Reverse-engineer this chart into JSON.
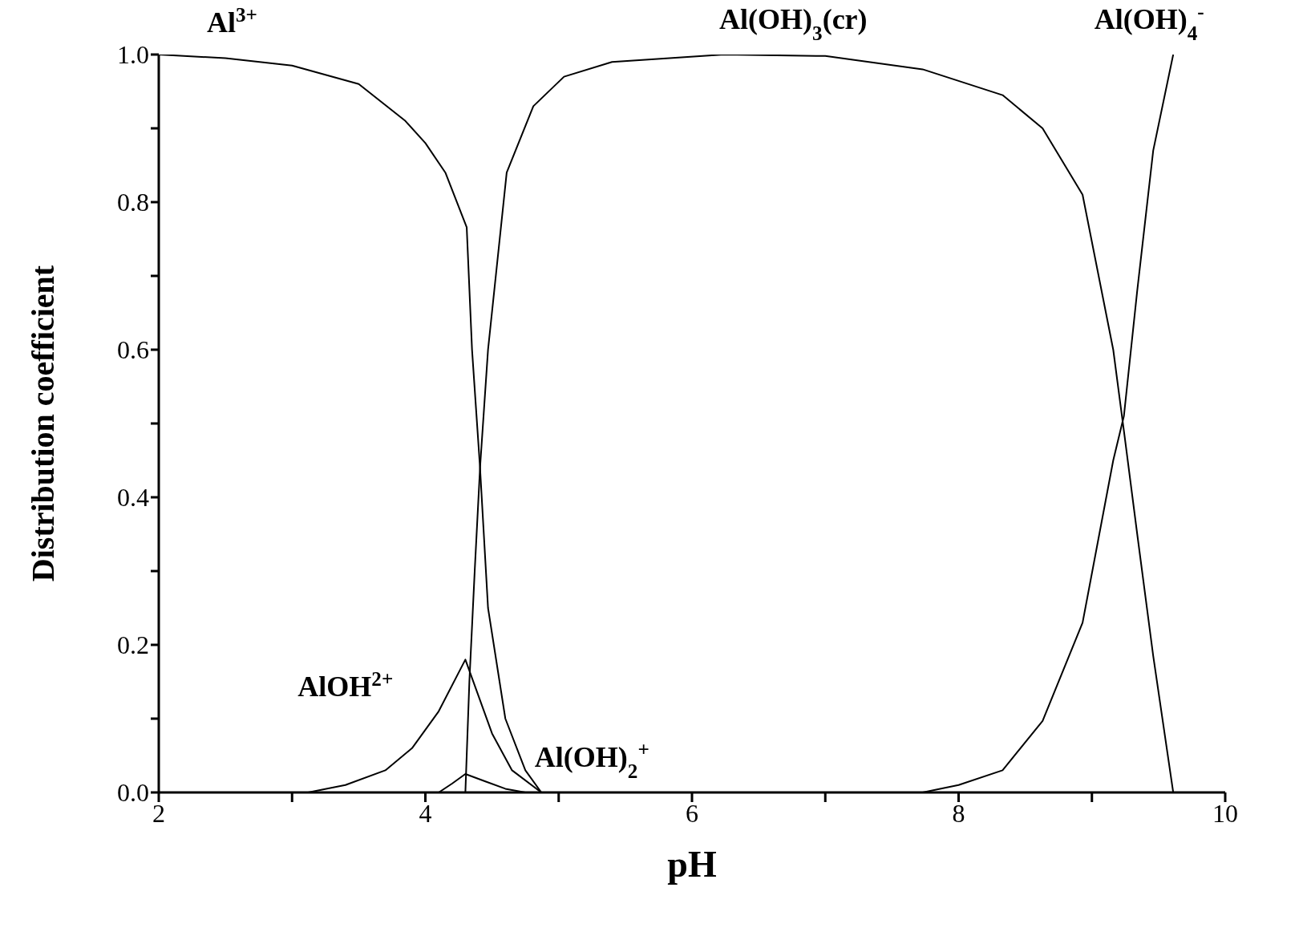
{
  "chart_data": {
    "type": "line",
    "xlabel": "pH",
    "ylabel": "Distribution coefficient",
    "xlim": [
      2,
      10
    ],
    "ylim": [
      0,
      1.0
    ],
    "xticks": [
      2,
      {
        "value": 3,
        "label": null
      },
      4,
      {
        "value": 5,
        "label": null
      },
      6,
      {
        "value": 7,
        "label": null
      },
      8,
      {
        "value": 9,
        "label": null
      },
      10
    ],
    "yticks": [
      {
        "value": 0,
        "label": "0.0"
      },
      {
        "value": 0.1,
        "label": null
      },
      {
        "value": 0.2,
        "label": "0.2"
      },
      {
        "value": 0.3,
        "label": null
      },
      {
        "value": 0.4,
        "label": "0.4"
      },
      {
        "value": 0.5,
        "label": null
      },
      {
        "value": 0.6,
        "label": "0.6"
      },
      {
        "value": 0.7,
        "label": null
      },
      {
        "value": 0.8,
        "label": "0.8"
      },
      {
        "value": 0.9,
        "label": null
      },
      {
        "value": 1.0,
        "label": "1.0"
      }
    ],
    "grid": false,
    "marker": "none",
    "line_style": "solid",
    "series": [
      {
        "color": "#000000",
        "x": [
          2,
          2.5,
          3,
          3.5,
          3.85,
          4.0,
          4.15,
          4.31,
          4.35,
          4.41,
          4.47,
          4.6,
          4.75,
          4.87
        ],
        "values": [
          1.0,
          0.995,
          0.985,
          0.96,
          0.91,
          0.88,
          0.84,
          0.766,
          0.6,
          0.44,
          0.25,
          0.1,
          0.03,
          0
        ]
      },
      {
        "color": "#000000",
        "x": [
          3.12,
          3.4,
          3.7,
          3.9,
          4.1,
          4.3,
          4.4,
          4.5,
          4.65,
          4.87
        ],
        "values": [
          0,
          0.01,
          0.03,
          0.06,
          0.11,
          0.18,
          0.13,
          0.08,
          0.03,
          0
        ]
      },
      {
        "color": "#000000",
        "x": [
          4.1,
          4.2,
          4.3,
          4.45,
          4.6,
          4.75
        ],
        "values": [
          0,
          0.012,
          0.025,
          0.015,
          0.005,
          0
        ]
      },
      {
        "color": "#000000",
        "x": [
          4.3,
          4.33,
          4.37,
          4.41,
          4.47,
          4.61,
          4.81,
          5.04,
          5.4,
          6.24,
          7.0,
          7.73,
          8.33,
          8.63,
          8.93,
          9.16,
          9.24,
          9.34,
          9.46,
          9.61
        ],
        "values": [
          0,
          0.15,
          0.3,
          0.44,
          0.6,
          0.84,
          0.93,
          0.97,
          0.99,
          1.0,
          0.998,
          0.98,
          0.945,
          0.9,
          0.81,
          0.6,
          0.49,
          0.35,
          0.185,
          0
        ]
      },
      {
        "color": "#000000",
        "x": [
          7.73,
          8.0,
          8.33,
          8.63,
          8.93,
          9.16,
          9.24,
          9.34,
          9.46,
          9.61
        ],
        "values": [
          0,
          0.01,
          0.03,
          0.097,
          0.23,
          0.45,
          0.51,
          0.68,
          0.87,
          1.0
        ]
      }
    ],
    "annotations": [
      "Al$^{3+}$",
      "AlOH$^{2+}$",
      "Al(OH)$_{2}$$^{+}$",
      "Al(OH)$_{3}$(cr)",
      "Al(OH)$_{4}$$^{-}$"
    ]
  }
}
